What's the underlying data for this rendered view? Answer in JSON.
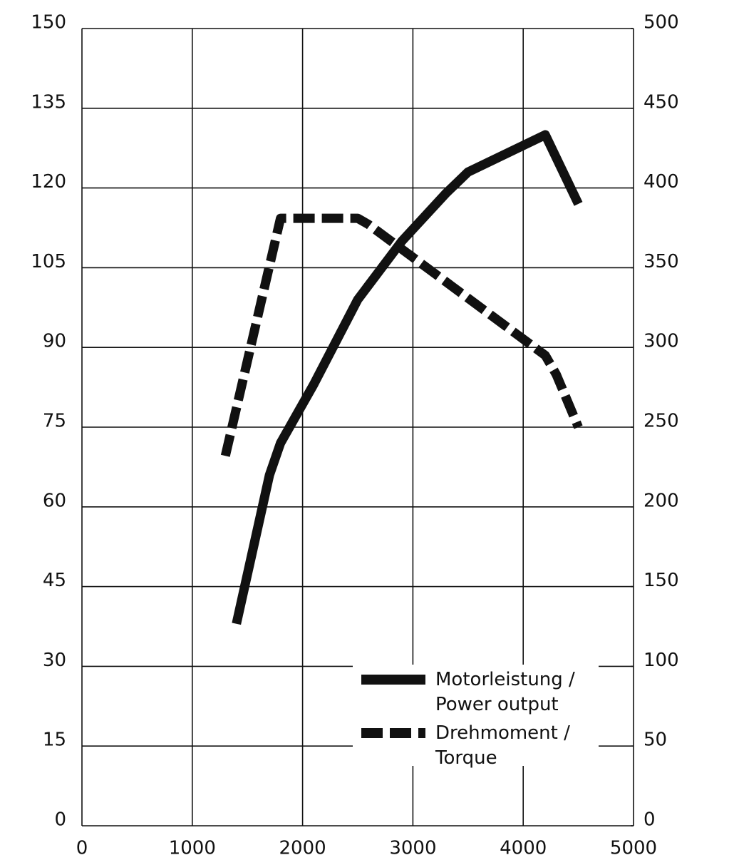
{
  "chart_data": {
    "type": "line",
    "xlim": [
      0,
      5000
    ],
    "xticks": [
      0,
      1000,
      2000,
      3000,
      4000,
      5000
    ],
    "ylim": [
      0,
      150
    ],
    "yticks": [
      0,
      15,
      30,
      45,
      60,
      75,
      90,
      105,
      120,
      135,
      150
    ],
    "y2lim": [
      0,
      500
    ],
    "y2ticks": [
      0,
      50,
      100,
      150,
      200,
      250,
      300,
      350,
      400,
      450,
      500
    ],
    "grid": true,
    "series": [
      {
        "name": "Motorleistung / Power output",
        "color": "#111111",
        "style": "solid",
        "x": [
          1400,
          1700,
          1800,
          2100,
          2500,
          2900,
          3300,
          3500,
          4200,
          4500
        ],
        "values": [
          38,
          66,
          72,
          83,
          99,
          110,
          119,
          123,
          130,
          117
        ]
      },
      {
        "name": "Drehmoment / Torque",
        "color": "#111111",
        "style": "dashed",
        "axis": "y2",
        "x": [
          1300,
          1800,
          2500,
          2600,
          4200,
          4300,
          4500
        ],
        "values": [
          232,
          381,
          381,
          377,
          295,
          283,
          250
        ]
      }
    ]
  }
}
